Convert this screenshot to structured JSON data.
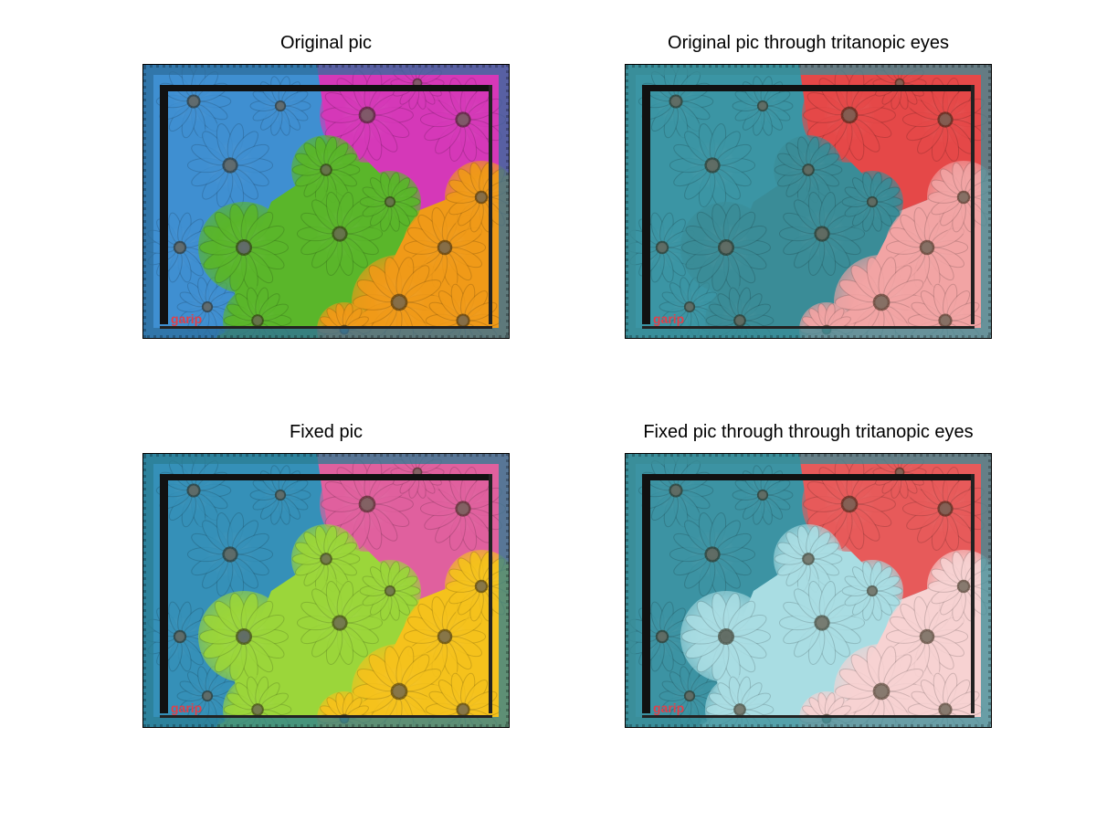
{
  "figure": {
    "panels": [
      {
        "id": "original",
        "title": "Original pic",
        "colors": {
          "blue": "#3f8fd1",
          "magenta": "#d538b8",
          "green": "#5ab62a",
          "orange": "#f09a18",
          "frame": "#2d6e9c"
        }
      },
      {
        "id": "original-tritanopic",
        "title": "Original pic through tritanopic eyes",
        "colors": {
          "blue": "#3b95a4",
          "magenta": "#e54848",
          "green": "#3a8c97",
          "orange": "#f2a4a4",
          "frame": "#3a8c97"
        }
      },
      {
        "id": "fixed",
        "title": "Fixed pic",
        "colors": {
          "blue": "#3590b8",
          "magenta": "#e0609e",
          "green": "#9bd63a",
          "orange": "#f5c21c",
          "frame": "#2b7d93"
        }
      },
      {
        "id": "fixed-tritanopic",
        "title": "Fixed pic through through tritanopic eyes",
        "colors": {
          "blue": "#3c93a3",
          "magenta": "#e75a5a",
          "green": "#a9dde3",
          "orange": "#f7d2d2",
          "frame": "#3a8c97"
        }
      }
    ],
    "watermark": "garip",
    "watermark_color": "#e0404a"
  }
}
